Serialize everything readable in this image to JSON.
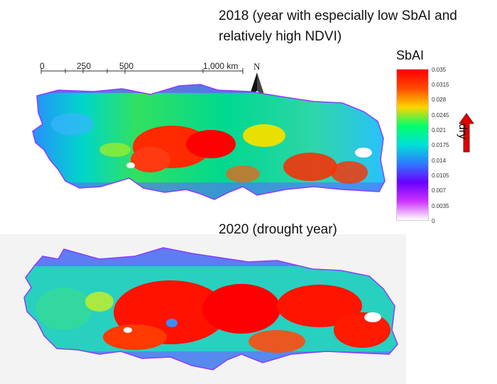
{
  "titles": {
    "top": "2018 (year with especially low SbAI and relatively high NDVI)",
    "bottom": "2020 (drought year)"
  },
  "scalebar": {
    "ticks": [
      "0",
      "250",
      "500",
      "1,000 km"
    ]
  },
  "north_arrow": {
    "letter": "N"
  },
  "legend": {
    "title": "SbAI",
    "ticks": [
      "0.035",
      "0.0315",
      "0.028",
      "0.0245",
      "0.021",
      "0.0175",
      "0.014",
      "0.0105",
      "0.007",
      "0.0035",
      "0"
    ],
    "colors": [
      "#ff0000",
      "#ff4a00",
      "#ffd400",
      "#00ff6a",
      "#00e0d6",
      "#2e7bff",
      "#6a00ff",
      "#cc33ff",
      "#ffffff"
    ],
    "arrow_label": "dry",
    "arrow_color": "#e00000"
  },
  "maps": {
    "top": {
      "year": "2018",
      "dominant_class": "mixed green/blue with red core"
    },
    "bottom": {
      "year": "2020",
      "dominant_class": "extensive red (high SbAI)"
    }
  }
}
